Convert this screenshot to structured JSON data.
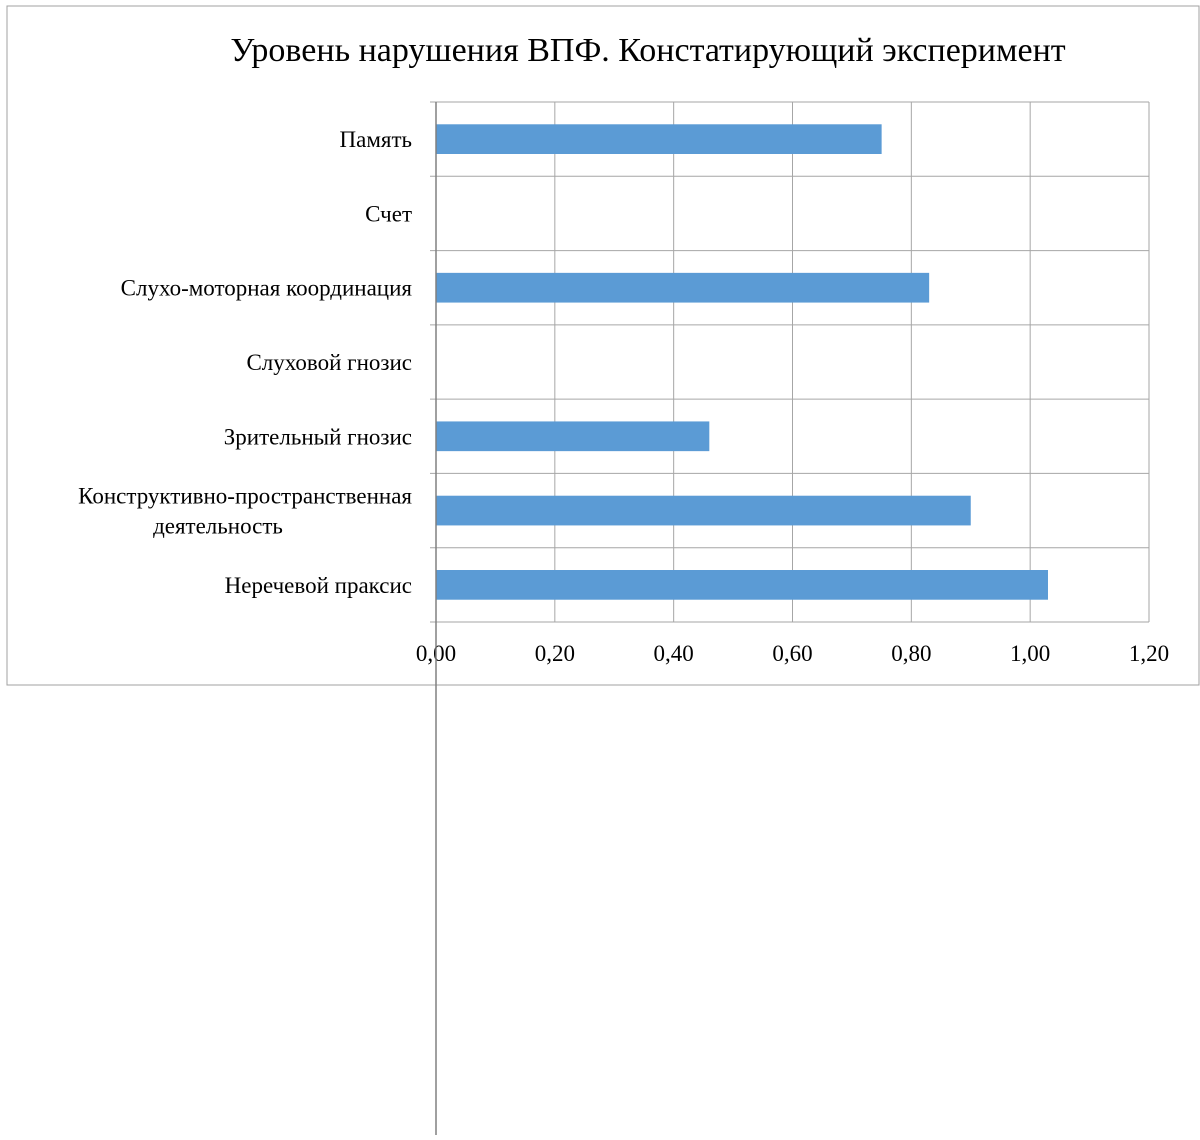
{
  "chart_data": {
    "type": "bar",
    "orientation": "horizontal",
    "title": "Уровень нарушения ВПФ. Констатирующий эксперимент",
    "xlabel": "",
    "ylabel": "",
    "xlim": [
      0,
      1.2
    ],
    "x_ticks": [
      {
        "value": 0.0,
        "label": "0,00"
      },
      {
        "value": 0.2,
        "label": "0,20"
      },
      {
        "value": 0.4,
        "label": "0,40"
      },
      {
        "value": 0.6,
        "label": "0,60"
      },
      {
        "value": 0.8,
        "label": "0,80"
      },
      {
        "value": 1.0,
        "label": "1,00"
      },
      {
        "value": 1.2,
        "label": "1,20"
      }
    ],
    "grid": true,
    "legend": "none",
    "bar_color": "#5b9bd5",
    "categories": [
      {
        "lines": [
          "Память"
        ],
        "value": 0.75
      },
      {
        "lines": [
          "Счет"
        ],
        "value": 0.0
      },
      {
        "lines": [
          "Слухо-моторная координация"
        ],
        "value": 0.83
      },
      {
        "lines": [
          "Слуховой гнозис"
        ],
        "value": 0.0
      },
      {
        "lines": [
          "Зрительный гнозис"
        ],
        "value": 0.46
      },
      {
        "lines": [
          "Конструктивно-пространственная",
          "деятельность"
        ],
        "value": 0.9
      },
      {
        "lines": [
          "Неречевой праксис"
        ],
        "value": 1.03
      }
    ]
  }
}
